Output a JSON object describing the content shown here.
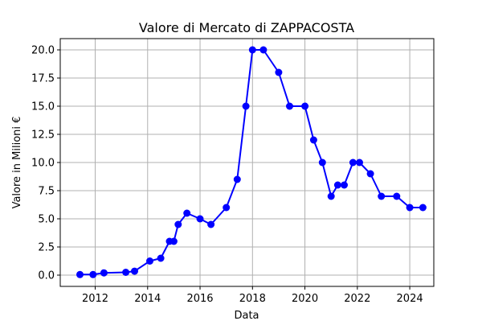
{
  "chart_data": {
    "type": "line",
    "title": "Valore di Mercato di ZAPPACOSTA",
    "xlabel": "Data",
    "ylabel": "Valore in Milioni €",
    "xlim": [
      "2010-09-01",
      "2024-12-01"
    ],
    "ylim": [
      -1.0,
      21.0
    ],
    "x_ticks": [
      "2012",
      "2014",
      "2016",
      "2018",
      "2020",
      "2022",
      "2024"
    ],
    "y_ticks": [
      "0.0",
      "2.5",
      "5.0",
      "7.5",
      "10.0",
      "12.5",
      "15.0",
      "17.5",
      "20.0"
    ],
    "grid": true,
    "series": [
      {
        "color": "#0000ff",
        "marker": "circle",
        "points": [
          {
            "x": "2011-06-01",
            "y": 0.05
          },
          {
            "x": "2011-12-01",
            "y": 0.05
          },
          {
            "x": "2012-05-01",
            "y": 0.2
          },
          {
            "x": "2013-03-01",
            "y": 0.25
          },
          {
            "x": "2013-07-01",
            "y": 0.35
          },
          {
            "x": "2014-02-01",
            "y": 1.25
          },
          {
            "x": "2014-07-01",
            "y": 1.5
          },
          {
            "x": "2014-11-01",
            "y": 3.0
          },
          {
            "x": "2015-01-01",
            "y": 3.0
          },
          {
            "x": "2015-03-01",
            "y": 4.5
          },
          {
            "x": "2015-07-01",
            "y": 5.5
          },
          {
            "x": "2016-01-01",
            "y": 5.0
          },
          {
            "x": "2016-06-01",
            "y": 4.5
          },
          {
            "x": "2017-01-01",
            "y": 6.0
          },
          {
            "x": "2017-06-01",
            "y": 8.5
          },
          {
            "x": "2017-10-01",
            "y": 15.0
          },
          {
            "x": "2018-01-01",
            "y": 20.0
          },
          {
            "x": "2018-06-01",
            "y": 20.0
          },
          {
            "x": "2019-01-01",
            "y": 18.0
          },
          {
            "x": "2019-06-01",
            "y": 15.0
          },
          {
            "x": "2020-01-01",
            "y": 15.0
          },
          {
            "x": "2020-05-01",
            "y": 12.0
          },
          {
            "x": "2020-09-01",
            "y": 10.0
          },
          {
            "x": "2021-01-01",
            "y": 7.0
          },
          {
            "x": "2021-04-01",
            "y": 8.0
          },
          {
            "x": "2021-07-01",
            "y": 8.0
          },
          {
            "x": "2021-11-01",
            "y": 10.0
          },
          {
            "x": "2022-02-01",
            "y": 10.0
          },
          {
            "x": "2022-07-01",
            "y": 9.0
          },
          {
            "x": "2022-12-01",
            "y": 7.0
          },
          {
            "x": "2023-07-01",
            "y": 7.0
          },
          {
            "x": "2024-01-01",
            "y": 6.0
          },
          {
            "x": "2024-07-01",
            "y": 6.0
          }
        ]
      }
    ]
  }
}
